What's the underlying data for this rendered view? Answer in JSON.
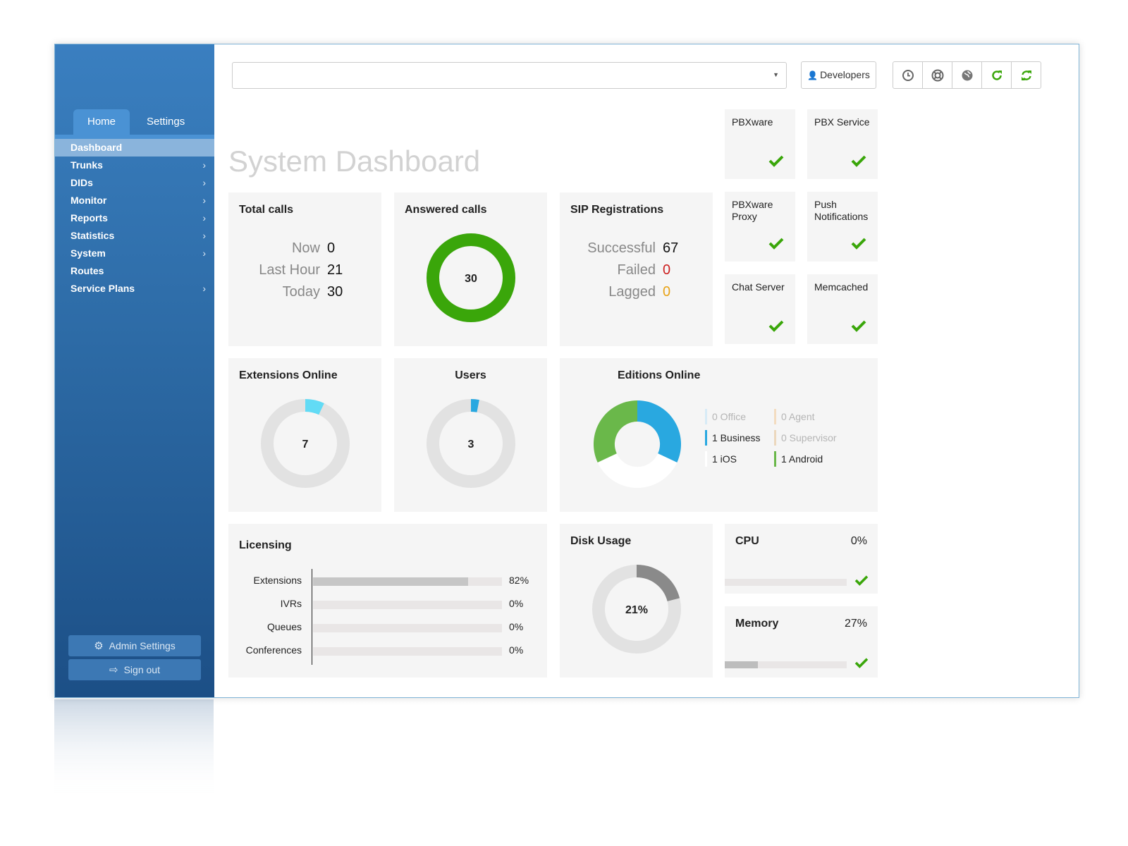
{
  "sidebar": {
    "tabs": [
      {
        "label": "Home"
      },
      {
        "label": "Settings"
      }
    ],
    "items": [
      {
        "label": "Dashboard"
      },
      {
        "label": "Trunks"
      },
      {
        "label": "DIDs"
      },
      {
        "label": "Monitor"
      },
      {
        "label": "Reports"
      },
      {
        "label": "Statistics"
      },
      {
        "label": "System"
      },
      {
        "label": "Routes"
      },
      {
        "label": "Service Plans"
      }
    ],
    "admin_settings_label": "Admin Settings",
    "sign_out_label": "Sign out"
  },
  "header": {
    "search_value": "",
    "developers_label": "Developers",
    "tools": [
      "clock-icon",
      "lifebuoy-icon",
      "globe-icon",
      "refresh-icon",
      "sync-icon"
    ]
  },
  "page": {
    "title": "System Dashboard"
  },
  "total_calls": {
    "title": "Total calls",
    "rows": [
      {
        "label": "Now",
        "value": "0"
      },
      {
        "label": "Last Hour",
        "value": "21"
      },
      {
        "label": "Today",
        "value": "30"
      }
    ]
  },
  "answered_calls": {
    "title": "Answered calls",
    "value": "30",
    "fraction": 1.0
  },
  "sip_registrations": {
    "title": "SIP Registrations",
    "rows": [
      {
        "label": "Successful",
        "value": "67",
        "color": "#111111"
      },
      {
        "label": "Failed",
        "value": "0",
        "color": "#cc1f1f"
      },
      {
        "label": "Lagged",
        "value": "0",
        "color": "#e8a317"
      }
    ]
  },
  "services": [
    {
      "label": "PBXware"
    },
    {
      "label": "PBX Service"
    },
    {
      "label": "PBXware Proxy"
    },
    {
      "label": "Push Notifications"
    },
    {
      "label": "Chat Server"
    },
    {
      "label": "Memcached"
    }
  ],
  "extensions_online": {
    "title": "Extensions Online",
    "value": "7",
    "fraction": 0.07
  },
  "users": {
    "title": "Users",
    "value": "3",
    "fraction": 0.03
  },
  "editions_online": {
    "title": "Editions Online",
    "legend": [
      {
        "text": "0 Office",
        "color": "#d7ebf6",
        "faded": true
      },
      {
        "text": "0 Agent",
        "color": "#f3dcc0",
        "faded": true
      },
      {
        "text": "1 Business",
        "color": "#29a8e0",
        "faded": false
      },
      {
        "text": "0 Supervisor",
        "color": "#ecd8bd",
        "faded": true
      },
      {
        "text": "1 iOS",
        "color": "#f0f0f0",
        "faded": false
      },
      {
        "text": "1 Android",
        "color": "#6ab84a",
        "faded": false
      }
    ]
  },
  "licensing": {
    "title": "Licensing",
    "rows": [
      {
        "label": "Extensions",
        "percent": 82,
        "pct_text": "82%"
      },
      {
        "label": "IVRs",
        "percent": 0,
        "pct_text": "0%"
      },
      {
        "label": "Queues",
        "percent": 0,
        "pct_text": "0%"
      },
      {
        "label": "Conferences",
        "percent": 0,
        "pct_text": "0%"
      }
    ]
  },
  "disk_usage": {
    "title": "Disk Usage",
    "value": "21%",
    "fraction": 0.21
  },
  "cpu": {
    "title": "CPU",
    "value": "0%",
    "fraction": 0.0
  },
  "memory": {
    "title": "Memory",
    "value": "27%",
    "fraction": 0.27
  },
  "colors": {
    "accent_green": "#3aa60a",
    "check_green": "#3aa60a",
    "sidebar_blue": "#2d6ba6"
  }
}
